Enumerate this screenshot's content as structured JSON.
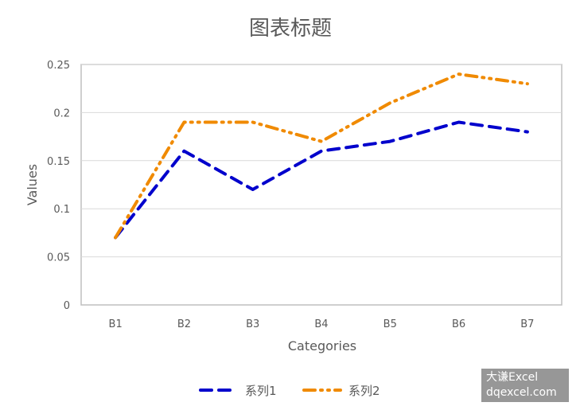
{
  "chart_data": {
    "type": "line",
    "title": "图表标题",
    "xlabel": "Categories",
    "ylabel": "Values",
    "categories": [
      "B1",
      "B2",
      "B3",
      "B4",
      "B5",
      "B6",
      "B7"
    ],
    "ylim": [
      0,
      0.25
    ],
    "yticks": [
      "0",
      "0.05",
      "0.1",
      "0.15",
      "0.2",
      "0.25"
    ],
    "grid": true,
    "legend_position": "bottom",
    "series": [
      {
        "name": "系列1",
        "values": [
          0.07,
          0.16,
          0.12,
          0.16,
          0.17,
          0.19,
          0.18
        ],
        "color": "#0000CC",
        "dash": "dashed"
      },
      {
        "name": "系列2",
        "values": [
          0.07,
          0.19,
          0.19,
          0.17,
          0.21,
          0.24,
          0.23
        ],
        "color": "#F08A00",
        "dash": "dash-dot-dot"
      }
    ]
  },
  "watermark": {
    "line1": "大谦Excel",
    "line2": "dqexcel.com"
  }
}
